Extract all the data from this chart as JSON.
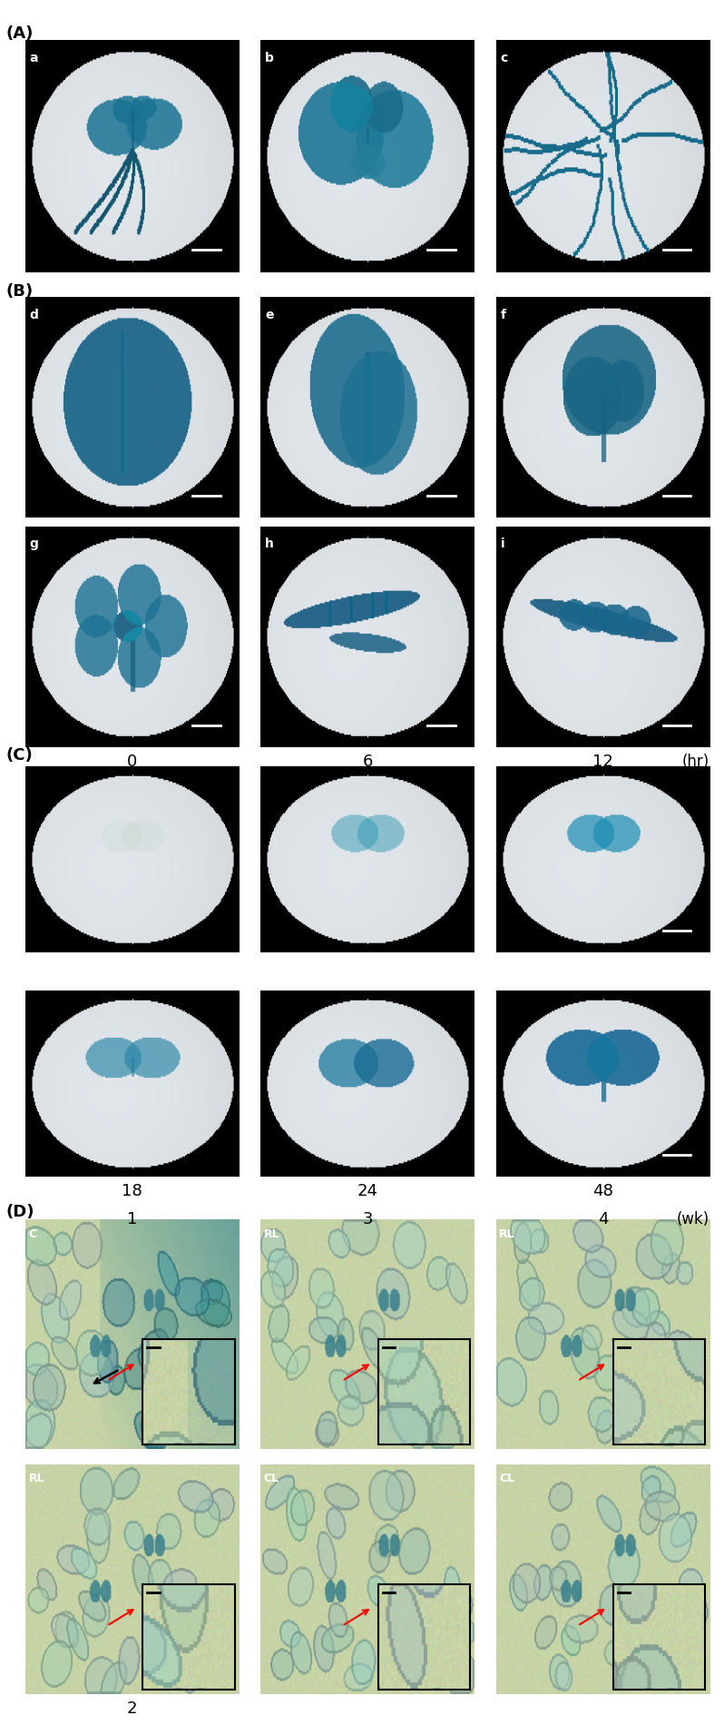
{
  "panel_A_label": "(A)",
  "panel_B_label": "(B)",
  "panel_C_label": "(C)",
  "panel_D_label": "(D)",
  "panel_A_letters": [
    "a",
    "b",
    "c"
  ],
  "panel_B_letters": [
    "d",
    "e",
    "f",
    "g",
    "h",
    "i"
  ],
  "panel_C_top_labels": [
    "0",
    "6",
    "12"
  ],
  "panel_C_bottom_labels": [
    "18",
    "24",
    "48"
  ],
  "panel_C_unit": "(hr)",
  "panel_D_col_labels": [
    "1",
    "3",
    "4"
  ],
  "panel_D_unit": "(wk)",
  "panel_D_row1_labels": [
    "C",
    "RL",
    "RL"
  ],
  "panel_D_row2_labels": [
    "RL",
    "CL",
    "CL"
  ],
  "panel_D_bottom_label": "2",
  "fig_bg": "white",
  "black_bg": "#000000",
  "dish_fill": "#dde8ee",
  "dish_edge": "#999999",
  "blue_dark": "#1a5a6a",
  "blue_mid": "#2a8a9a",
  "blue_light": "#5ab8c8",
  "epidermis_bg1": "#b8c890",
  "epidermis_bg2": "#c8d8a0",
  "epidermis_blue": "#4a8878",
  "cell_edge": "#6a8860",
  "figure_width": 7.98,
  "figure_height": 19.0,
  "figure_dpi": 100
}
